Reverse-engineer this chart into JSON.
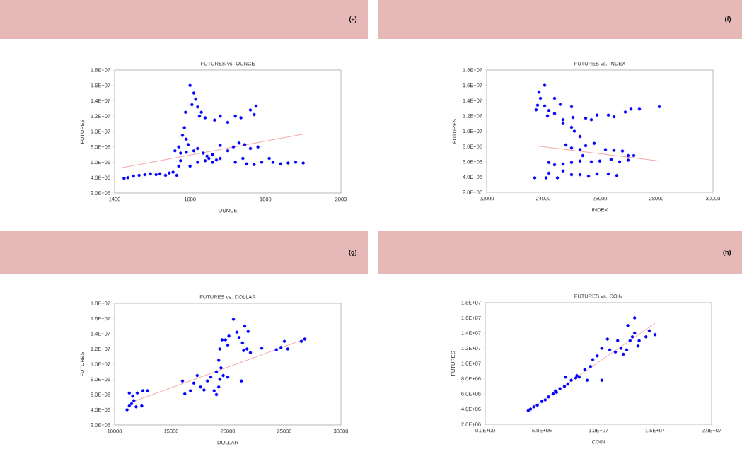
{
  "chart_data": [
    {
      "type": "scatter",
      "title": "FUTURES vs. OUNCE",
      "xlabel": "OUNCE",
      "ylabel": "FUTURES",
      "annotations": [
        "(e)"
      ],
      "xlim": [
        1400,
        2000
      ],
      "xticks": [
        1400,
        1600,
        1800,
        2000
      ],
      "ylim": [
        2000000,
        18000000
      ],
      "yticks": [
        {
          "value": 2000000,
          "label": "2.0E+06"
        },
        {
          "value": 4000000,
          "label": "4.0E+06"
        },
        {
          "value": 6000000,
          "label": "6.0E+06"
        },
        {
          "value": 8000000,
          "label": "8.0E+06"
        },
        {
          "value": 10000000,
          "label": "1.0E+07"
        },
        {
          "value": 12000000,
          "label": "1.2E+07"
        },
        {
          "value": 14000000,
          "label": "1.4E+07"
        },
        {
          "value": 16000000,
          "label": "1.6E+07"
        },
        {
          "value": 18000000,
          "label": "1.8E+07"
        }
      ],
      "series": [
        {
          "marker": "circle",
          "color": "#0000ff",
          "x": [
            1425,
            1435,
            1450,
            1465,
            1480,
            1495,
            1510,
            1520,
            1535,
            1545,
            1555,
            1565,
            1570,
            1575,
            1560,
            1570,
            1575,
            1580,
            1585,
            1588,
            1590,
            1595,
            1600,
            1605,
            1610,
            1615,
            1620,
            1625,
            1630,
            1640,
            1590,
            1610,
            1620,
            1635,
            1645,
            1650,
            1660,
            1670,
            1680,
            1600,
            1620,
            1640,
            1660,
            1680,
            1700,
            1715,
            1730,
            1745,
            1760,
            1780,
            1665,
            1680,
            1700,
            1720,
            1735,
            1760,
            1770,
            1775,
            1720,
            1740,
            1750,
            1770,
            1790,
            1810,
            1820,
            1840,
            1860,
            1880,
            1900
          ],
          "values": [
            3900000,
            4000000,
            4200000,
            4300000,
            4400000,
            4500000,
            4400000,
            4500000,
            4300000,
            4600000,
            4700000,
            4300000,
            5500000,
            6200000,
            7500000,
            8000000,
            7200000,
            9500000,
            10500000,
            12500000,
            9000000,
            8300000,
            16000000,
            13500000,
            15000000,
            14200000,
            13200000,
            12000000,
            12500000,
            11800000,
            7300000,
            7500000,
            7800000,
            7200000,
            6800000,
            6500000,
            7000000,
            6300000,
            8200000,
            5500000,
            6000000,
            6200000,
            6000000,
            6500000,
            7500000,
            8000000,
            8500000,
            8300000,
            7800000,
            8000000,
            11500000,
            12000000,
            11200000,
            12000000,
            11800000,
            12800000,
            12200000,
            13300000,
            6000000,
            6500000,
            5800000,
            5700000,
            6000000,
            6500000,
            6000000,
            5800000,
            5900000,
            6000000,
            5900000
          ]
        },
        {
          "type": "line",
          "color": "#f08080",
          "x": [
            1420,
            1905
          ],
          "values": [
            5300000,
            9700000
          ]
        }
      ]
    },
    {
      "type": "scatter",
      "title": "FUTURES vs. INDEX",
      "xlabel": "INDEX",
      "ylabel": "FUTURES",
      "annotations": [
        "(f)"
      ],
      "xlim": [
        22000,
        30000
      ],
      "xticks": [
        22000,
        24000,
        26000,
        28000,
        30000
      ],
      "ylim": [
        2000000,
        18000000
      ],
      "yticks": [
        {
          "value": 2000000,
          "label": "2.0E+06"
        },
        {
          "value": 4000000,
          "label": "4.0E+06"
        },
        {
          "value": 6000000,
          "label": "6.0E+06"
        },
        {
          "value": 8000000,
          "label": "8.0E+06"
        },
        {
          "value": 10000000,
          "label": "1.0E+07"
        },
        {
          "value": 12000000,
          "label": "1.2E+07"
        },
        {
          "value": 14000000,
          "label": "1.4E+07"
        },
        {
          "value": 16000000,
          "label": "1.6E+07"
        },
        {
          "value": 18000000,
          "label": "1.8E+07"
        }
      ],
      "series": [
        {
          "marker": "circle",
          "color": "#0000ff",
          "x": [
            23700,
            23800,
            23750,
            23900,
            23850,
            24050,
            24050,
            24150,
            24200,
            24400,
            24400,
            24600,
            24700,
            24700,
            25000,
            25050,
            25000,
            25100,
            25300,
            25500,
            25700,
            25900,
            26300,
            26500,
            26900,
            27100,
            27400,
            28100,
            24800,
            25000,
            25300,
            25500,
            25800,
            25400,
            26200,
            26500,
            26800,
            27000,
            27200,
            26400,
            26700,
            27000,
            24200,
            24400,
            24700,
            25000,
            25300,
            25700,
            26000,
            24200,
            24500,
            24700,
            25000,
            25300,
            25600,
            25900,
            26300,
            26600,
            24100
          ],
          "values": [
            3900000,
            13400000,
            12800000,
            14300000,
            15100000,
            16000000,
            13300000,
            12000000,
            12700000,
            12300000,
            14300000,
            13500000,
            11500000,
            11000000,
            13200000,
            11800000,
            10500000,
            10000000,
            9300000,
            11700000,
            11500000,
            12100000,
            12100000,
            11900000,
            12500000,
            12900000,
            12900000,
            13200000,
            8200000,
            7800000,
            7600000,
            8100000,
            8400000,
            6800000,
            7600000,
            7500000,
            7400000,
            6800000,
            6800000,
            6300000,
            6000000,
            6200000,
            5900000,
            5600000,
            5700000,
            5900000,
            6100000,
            6000000,
            6100000,
            4500000,
            3900000,
            4800000,
            4300000,
            4300000,
            4100000,
            4400000,
            4400000,
            4200000,
            3900000
          ]
        },
        {
          "type": "line",
          "color": "#f08080",
          "x": [
            23700,
            28100
          ],
          "values": [
            8100000,
            6100000
          ]
        }
      ]
    },
    {
      "type": "scatter",
      "title": "FUTURES vs. DOLLAR",
      "xlabel": "DOLLAR",
      "ylabel": "FUTURES",
      "annotations": [
        "(g)"
      ],
      "xlim": [
        10000,
        30000
      ],
      "xticks": [
        10000,
        15000,
        20000,
        25000,
        30000
      ],
      "ylim": [
        2000000,
        18000000
      ],
      "yticks": [
        {
          "value": 2000000,
          "label": "2.0E+06"
        },
        {
          "value": 4000000,
          "label": "4.0E+06"
        },
        {
          "value": 6000000,
          "label": "6.0E+06"
        },
        {
          "value": 8000000,
          "label": "8.0E+06"
        },
        {
          "value": 10000000,
          "label": "1.0E+07"
        },
        {
          "value": 12000000,
          "label": "1.2E+07"
        },
        {
          "value": 14000000,
          "label": "1.4E+07"
        },
        {
          "value": 16000000,
          "label": "1.6E+07"
        },
        {
          "value": 18000000,
          "label": "1.8E+07"
        }
      ],
      "series": [
        {
          "marker": "circle",
          "color": "#0000ff",
          "x": [
            11100,
            11300,
            11500,
            11700,
            11300,
            11600,
            12000,
            12500,
            12900,
            12400,
            11900,
            16000,
            16200,
            16700,
            17000,
            17300,
            17600,
            17900,
            18200,
            18500,
            18800,
            19000,
            19200,
            19300,
            19000,
            19200,
            19400,
            19300,
            19500,
            19800,
            20100,
            20000,
            19600,
            20000,
            20500,
            20800,
            21000,
            21300,
            21500,
            21400,
            21700,
            22000,
            21800,
            21200,
            23000,
            24300,
            24700,
            25000,
            25300,
            26500,
            26800
          ],
          "values": [
            4000000,
            4500000,
            4800000,
            5200000,
            6200000,
            5800000,
            6200000,
            6500000,
            6500000,
            4500000,
            4400000,
            7800000,
            6100000,
            6500000,
            7500000,
            8500000,
            7000000,
            6600000,
            7800000,
            8300000,
            6500000,
            6000000,
            7000000,
            8000000,
            9000000,
            10500000,
            9500000,
            12000000,
            13200000,
            13200000,
            13700000,
            12500000,
            8500000,
            8300000,
            15900000,
            14200000,
            13500000,
            12800000,
            15000000,
            11800000,
            12000000,
            11500000,
            14300000,
            7800000,
            12100000,
            11900000,
            12200000,
            13000000,
            12000000,
            13000000,
            13300000
          ]
        },
        {
          "type": "line",
          "color": "#f08080",
          "x": [
            11500,
            27000
          ],
          "values": [
            5000000,
            13400000
          ]
        }
      ]
    },
    {
      "type": "scatter",
      "title": "FUTURES vs. COIN",
      "xlabel": "COIN",
      "ylabel": "FUTURES",
      "annotations": [
        "(h)"
      ],
      "xlim": [
        0,
        20000000
      ],
      "xticks": [
        {
          "value": 0,
          "label": "0.0E+00"
        },
        {
          "value": 5000000,
          "label": "5.0E+06"
        },
        {
          "value": 10000000,
          "label": "1.0E+07"
        },
        {
          "value": 15000000,
          "label": "1.5E+07"
        },
        {
          "value": 20000000,
          "label": "2.0E+07"
        }
      ],
      "ylim": [
        2000000,
        18000000
      ],
      "yticks": [
        {
          "value": 2000000,
          "label": "2.0E+06"
        },
        {
          "value": 4000000,
          "label": "4.0E+06"
        },
        {
          "value": 6000000,
          "label": "6.0E+06"
        },
        {
          "value": 8000000,
          "label": "8.0E+06"
        },
        {
          "value": 10000000,
          "label": "1.0E+07"
        },
        {
          "value": 12000000,
          "label": "1.2E+07"
        },
        {
          "value": 14000000,
          "label": "1.4E+07"
        },
        {
          "value": 16000000,
          "label": "1.6E+07"
        },
        {
          "value": 18000000,
          "label": "1.8E+07"
        }
      ],
      "series": [
        {
          "marker": "circle",
          "color": "#0000ff",
          "x": [
            3800000,
            4000000,
            4300000,
            4600000,
            5000000,
            5300000,
            5600000,
            6000000,
            6300000,
            6600000,
            7000000,
            7300000,
            7600000,
            8000000,
            8300000,
            6200000,
            7100000,
            8800000,
            9000000,
            9300000,
            9500000,
            10300000,
            9900000,
            10300000,
            10800000,
            11000000,
            11500000,
            11700000,
            12000000,
            12200000,
            12500000,
            12600000,
            12800000,
            13000000,
            13200000,
            13200000,
            13500000,
            13600000,
            14200000,
            14500000,
            15000000,
            8100000
          ],
          "values": [
            3800000,
            4000000,
            4300000,
            4500000,
            5000000,
            5200000,
            5600000,
            6000000,
            6200000,
            6700000,
            7000000,
            7300000,
            7800000,
            8100000,
            8200000,
            6400000,
            8200000,
            9200000,
            7800000,
            9600000,
            10500000,
            7800000,
            11000000,
            12000000,
            13200000,
            11800000,
            11500000,
            13000000,
            12000000,
            11200000,
            11800000,
            15000000,
            13000000,
            13500000,
            14000000,
            16000000,
            12300000,
            13000000,
            13500000,
            14300000,
            13800000,
            8400000
          ]
        },
        {
          "type": "line",
          "color": "#f08080",
          "x": [
            3800000,
            15000000
          ],
          "values": [
            3800000,
            15300000
          ]
        }
      ]
    }
  ]
}
